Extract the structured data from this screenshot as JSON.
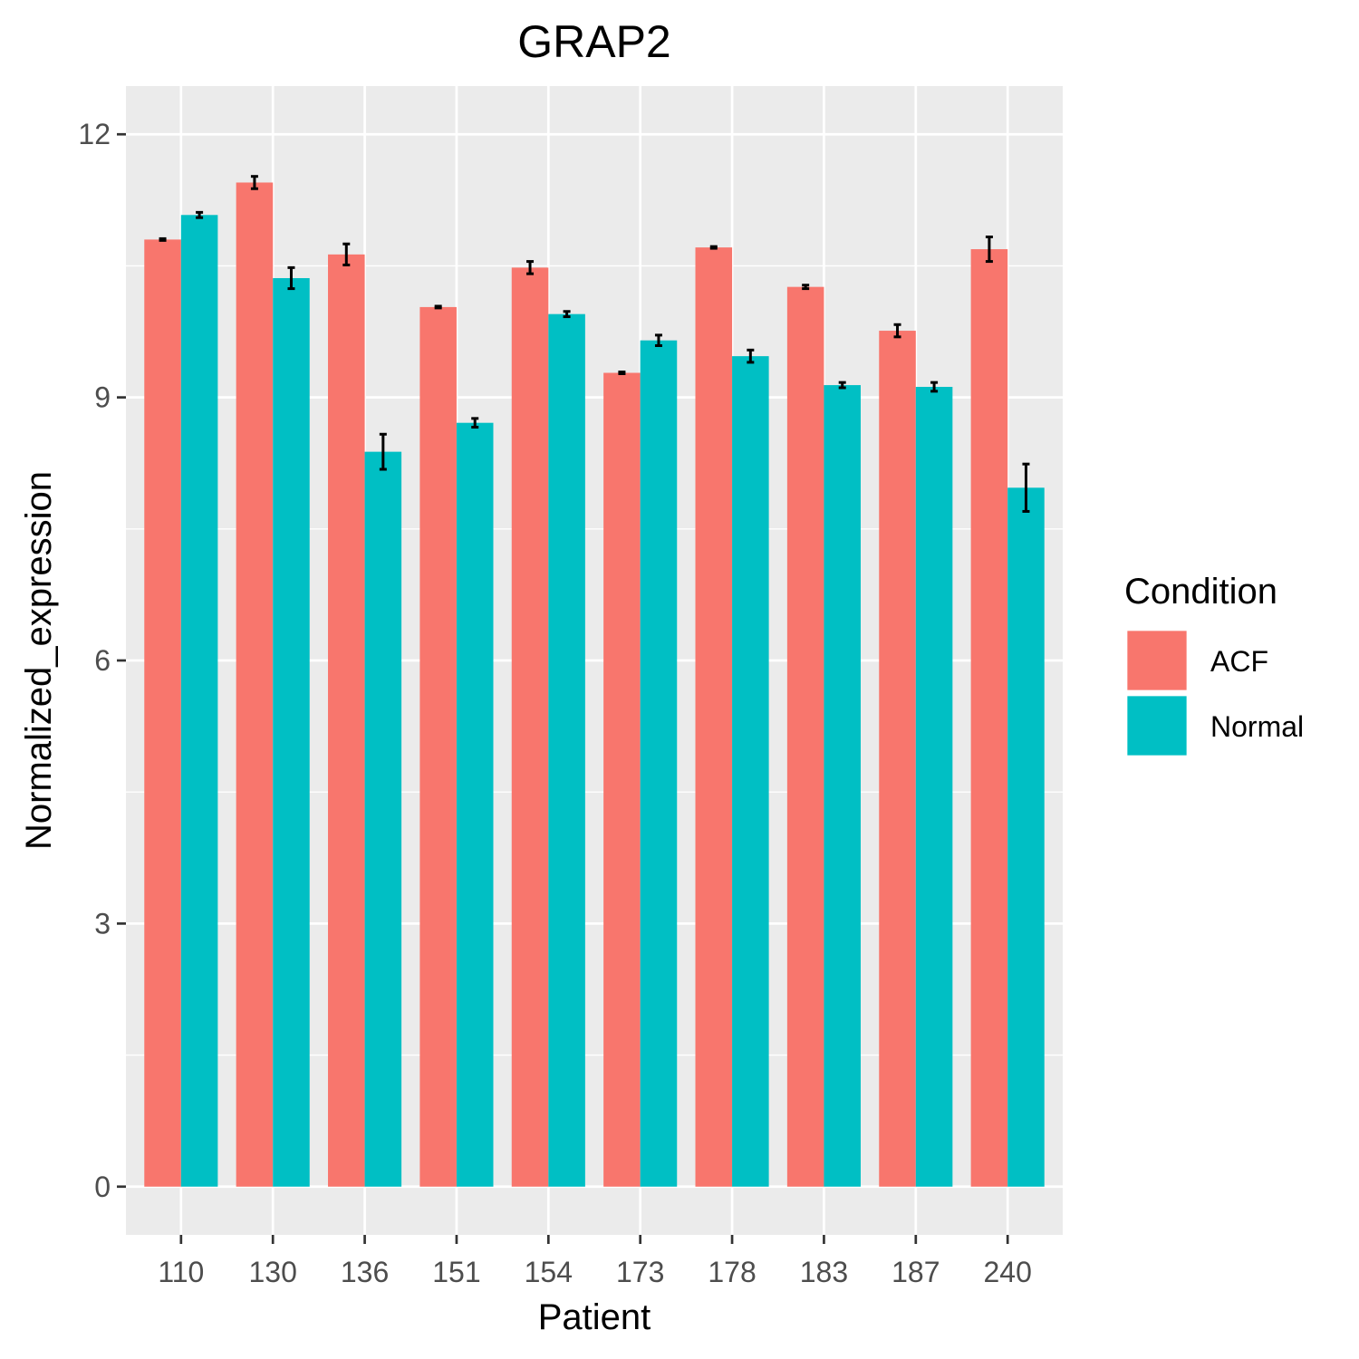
{
  "chart_data": {
    "type": "bar",
    "title": "GRAP2",
    "xlabel": "Patient",
    "ylabel": "Normalized_expression",
    "categories": [
      "110",
      "130",
      "136",
      "151",
      "154",
      "173",
      "178",
      "183",
      "187",
      "240"
    ],
    "series": [
      {
        "name": "ACF",
        "color": "#F8766D",
        "values": [
          10.8,
          11.45,
          10.63,
          10.03,
          10.48,
          9.28,
          10.71,
          10.26,
          9.76,
          10.69
        ],
        "errors": [
          0.01,
          0.07,
          0.12,
          0.01,
          0.07,
          0.01,
          0.01,
          0.02,
          0.07,
          0.14
        ]
      },
      {
        "name": "Normal",
        "color": "#00BFC4",
        "values": [
          11.08,
          10.36,
          8.38,
          8.71,
          9.95,
          9.65,
          9.47,
          9.14,
          9.12,
          7.97
        ],
        "errors": [
          0.03,
          0.12,
          0.2,
          0.05,
          0.03,
          0.06,
          0.07,
          0.03,
          0.05,
          0.27
        ]
      }
    ],
    "ylim": [
      -0.55,
      12.55
    ],
    "yticks": [
      0,
      3,
      6,
      9,
      12
    ],
    "grid": true,
    "background": "#EBEBEB",
    "legend": {
      "title": "Condition",
      "position": "right"
    }
  }
}
